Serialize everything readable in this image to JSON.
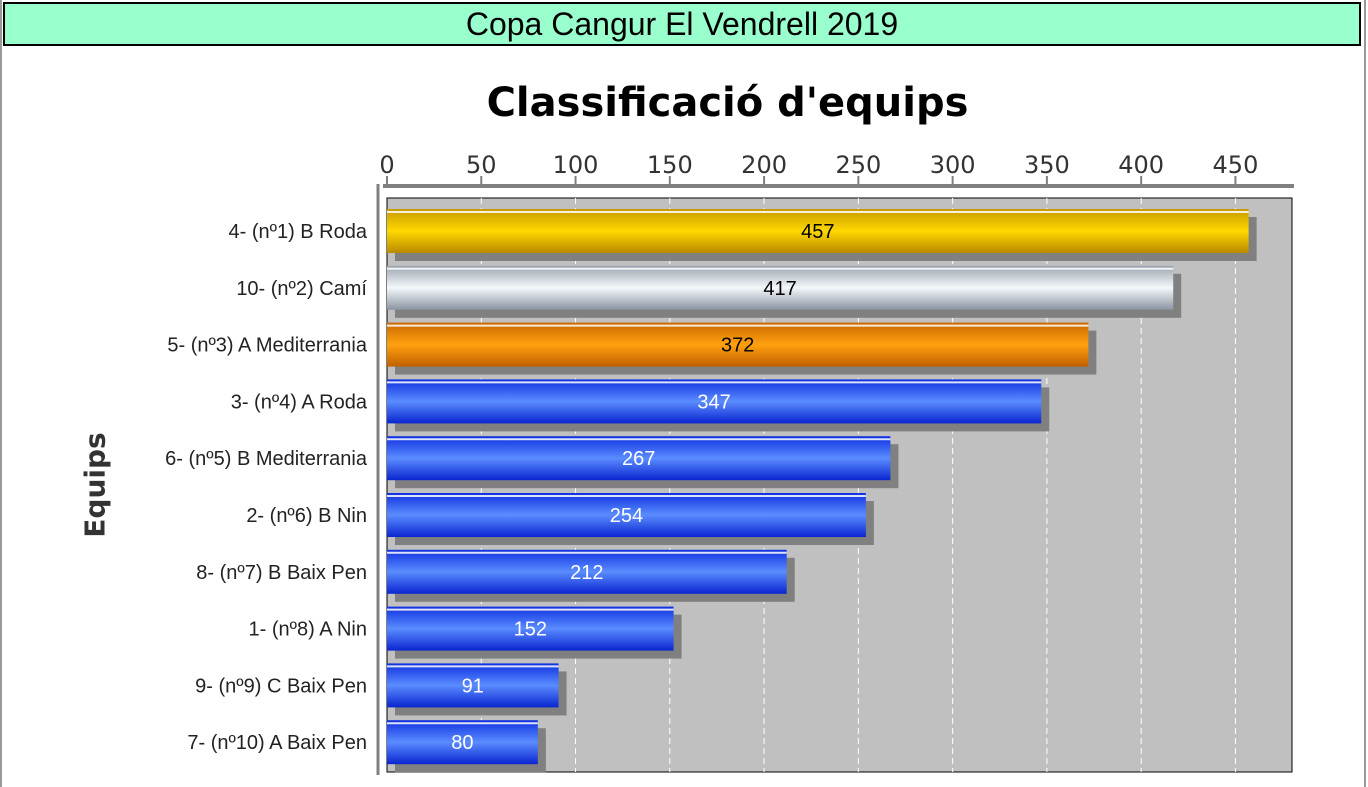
{
  "header": {
    "title": "Copa Cangur El Vendrell 2019"
  },
  "colors": {
    "banner_bg": "#99ffcc",
    "plot_bg": "#c0c0c0",
    "gold": "#f5c400",
    "silver": "#c8d0d8",
    "bronze": "#f09010",
    "blue": "#2255ff",
    "shadow": "#808080"
  },
  "chart_data": {
    "type": "bar",
    "orientation": "horizontal",
    "title": "Classificació d'equips",
    "ylabel": "Equips",
    "xlabel": "",
    "xlim": [
      0,
      480
    ],
    "xticks": [
      0,
      50,
      100,
      150,
      200,
      250,
      300,
      350,
      400,
      450
    ],
    "grid": true,
    "categories": [
      "4- (nº1) B Roda",
      "10- (nº2) Camí",
      "5- (nº3) A Mediterrania",
      "3- (nº4) A Roda",
      "6- (nº5) B Mediterrania",
      "2- (nº6) B Nin",
      "8- (nº7) B Baix Pen",
      "1- (nº8) A Nin",
      "9- (nº9) C Baix Pen",
      "7- (nº10) A Baix Pen"
    ],
    "values": [
      457,
      417,
      372,
      347,
      267,
      254,
      212,
      152,
      91,
      80
    ],
    "bar_styles": [
      "gold",
      "silver",
      "bronze",
      "blue",
      "blue",
      "blue",
      "blue",
      "blue",
      "blue",
      "blue"
    ]
  }
}
